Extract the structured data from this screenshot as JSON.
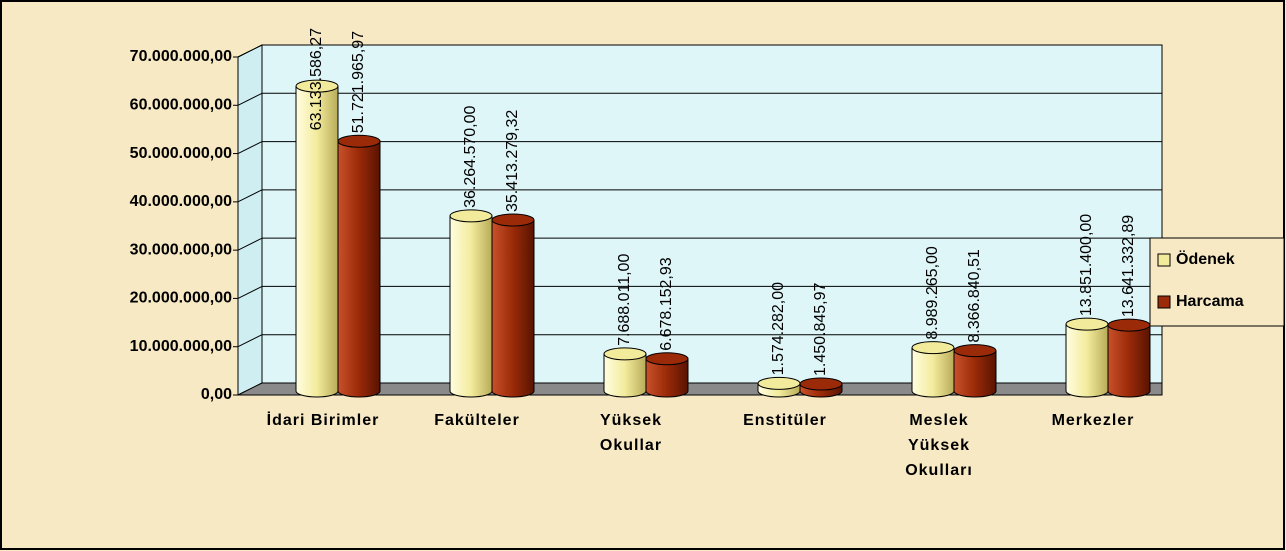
{
  "chart_data": {
    "type": "bar",
    "categories": [
      "İdari Birimler",
      "Fakülteler",
      "Yüksek\nOkullar",
      "Enstitüler",
      "Meslek\nYüksek\nOkulları",
      "Merkezler"
    ],
    "series": [
      {
        "name": "Ödenek",
        "color": "#f3eb9c",
        "values": [
          63133586.27,
          36264570.0,
          7688011.0,
          1574282.0,
          8989265.0,
          13851400.0
        ],
        "value_labels": [
          "63.133.586,27",
          "36.264.570,00",
          "7.688.011,00",
          "1.574.282,00",
          "8.989.265,00",
          "13.851.400,00"
        ]
      },
      {
        "name": "Harcama",
        "color": "#9a2a08",
        "values": [
          51721965.97,
          35413279.32,
          6678152.93,
          1450845.97,
          8366840.51,
          13641332.89
        ],
        "value_labels": [
          "51.721.965,97",
          "35.413.279,32",
          "6.678.152,93",
          "1.450.845,97",
          "8.366.840,51",
          "13.641.332,89"
        ]
      }
    ],
    "ylim": [
      0,
      70000000
    ],
    "yticks": [
      {
        "value": 0,
        "label": "0,00"
      },
      {
        "value": 10000000,
        "label": "10.000.000,00"
      },
      {
        "value": 20000000,
        "label": "20.000.000,00"
      },
      {
        "value": 30000000,
        "label": "30.000.000,00"
      },
      {
        "value": 40000000,
        "label": "40.000.000,00"
      },
      {
        "value": 50000000,
        "label": "50.000.000,00"
      },
      {
        "value": 60000000,
        "label": "60.000.000,00"
      },
      {
        "value": 70000000,
        "label": "70.000.000,00"
      }
    ],
    "grid": true,
    "legend": "right"
  }
}
